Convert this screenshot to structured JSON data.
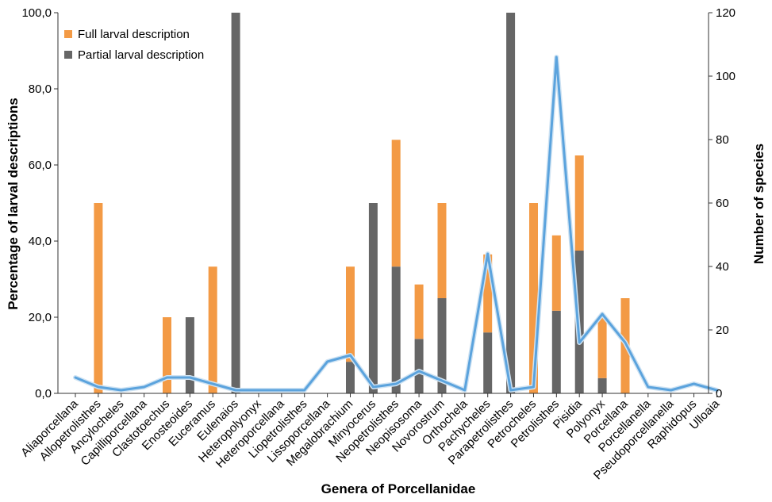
{
  "chart_data": {
    "type": "bar",
    "stacked": true,
    "title": "",
    "xlabel": "Genera of Porcellanidae",
    "ylabel": "Percentage of larval descriptions",
    "y2label": "Number of species",
    "ylim": [
      0,
      100
    ],
    "y2lim": [
      0,
      120
    ],
    "yticks": [
      "0,0",
      "20,0",
      "40,0",
      "60,0",
      "80,0",
      "100,0"
    ],
    "y2ticks": [
      "0",
      "20",
      "40",
      "60",
      "80",
      "100",
      "120"
    ],
    "grid": false,
    "legend_position": "top-left",
    "categories": [
      "Aliaporcellana",
      "Allopetrolisthes",
      "Ancylocheles",
      "Capilliporcellana",
      "Clastotoechus",
      "Enosteoides",
      "Euceramus",
      "Eulenaios",
      "Heteropolyonyx",
      "Heteroporcellana",
      "Liopetrolisthes",
      "Lissoporcellana",
      "Megalobrachium",
      "Minyocerus",
      "Neopetrolisthes",
      "Neopisosoma",
      "Novorostrum",
      "Orthochela",
      "Pachycheles",
      "Parapetrolisthes",
      "Petrocheles",
      "Petrolisthes",
      "Pisidia",
      "Polyonyx",
      "Porcellana",
      "Porcellanella",
      "Pseudoporcellanella",
      "Raphidopus",
      "Ulloaia"
    ],
    "series": [
      {
        "name": "Partial larval description",
        "kind": "bar",
        "color": "#666666",
        "values": [
          0,
          0,
          0,
          0,
          0,
          20,
          0,
          100,
          0,
          0,
          0,
          0,
          8.3,
          50,
          33.3,
          14.3,
          25,
          0,
          16,
          100,
          0,
          21.7,
          37.5,
          4,
          0,
          0,
          0,
          0,
          0
        ]
      },
      {
        "name": "Full larval description",
        "kind": "bar",
        "color": "#f39a45",
        "values": [
          0,
          50,
          0,
          0,
          20,
          0,
          33.3,
          0,
          0,
          0,
          0,
          0,
          25,
          0,
          33.3,
          14.3,
          25,
          0,
          20.5,
          0,
          50,
          19.8,
          25,
          16,
          25,
          0,
          0,
          0,
          0
        ]
      },
      {
        "kind": "line",
        "axis": "right",
        "color": "#5ba3dd",
        "values": [
          5,
          2,
          1,
          2,
          5,
          5,
          3,
          1,
          1,
          1,
          1,
          10,
          12,
          2,
          3,
          7,
          4,
          1,
          44,
          1,
          2,
          106,
          16,
          25,
          16,
          2,
          1,
          3,
          1
        ]
      }
    ]
  }
}
